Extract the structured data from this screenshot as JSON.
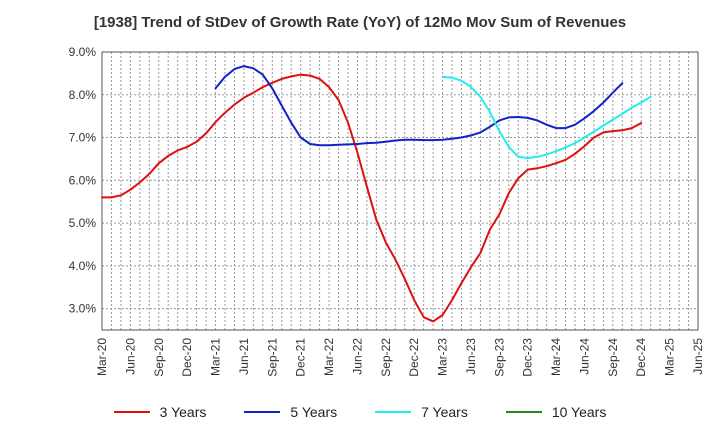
{
  "chart_data": {
    "type": "line",
    "title": "[1938]  Trend of StDev of Growth Rate (YoY) of 12Mo Mov Sum of Revenues",
    "xlabel": "",
    "ylabel": "",
    "ylim": [
      2.5,
      9.0
    ],
    "yticks": [
      3.0,
      4.0,
      5.0,
      6.0,
      7.0,
      8.0,
      9.0
    ],
    "ytick_labels": [
      "3.0%",
      "4.0%",
      "5.0%",
      "6.0%",
      "7.0%",
      "8.0%",
      "9.0%"
    ],
    "x_categories": [
      "Mar-20",
      "Jun-20",
      "Sep-20",
      "Dec-20",
      "Mar-21",
      "Jun-21",
      "Sep-21",
      "Dec-21",
      "Mar-22",
      "Jun-22",
      "Sep-22",
      "Dec-22",
      "Mar-23",
      "Jun-23",
      "Sep-23",
      "Dec-23",
      "Mar-24",
      "Jun-24",
      "Sep-24",
      "Dec-24",
      "Mar-25",
      "Jun-25"
    ],
    "grid": true,
    "legend_position": "bottom",
    "series": [
      {
        "name": "3 Years",
        "color": "#dd1111",
        "start_index": 0,
        "values": [
          5.6,
          5.6,
          5.65,
          5.78,
          5.95,
          6.15,
          6.4,
          6.57,
          6.7,
          6.78,
          6.9,
          7.1,
          7.36,
          7.58,
          7.77,
          7.93,
          8.05,
          8.18,
          8.28,
          8.37,
          8.43,
          8.47,
          8.45,
          8.37,
          8.18,
          7.88,
          7.35,
          6.65,
          5.85,
          5.08,
          4.55,
          4.15,
          3.7,
          3.2,
          2.8,
          2.7,
          2.85,
          3.2,
          3.6,
          3.97,
          4.3,
          4.85,
          5.2,
          5.7,
          6.05,
          6.25,
          6.28,
          6.33,
          6.4,
          6.48,
          6.62,
          6.8,
          7.0,
          7.12,
          7.15,
          7.17,
          7.22,
          7.34
        ]
      },
      {
        "name": "5 Years",
        "color": "#1122cc",
        "start_index": 12,
        "values": [
          8.15,
          8.42,
          8.6,
          8.67,
          8.62,
          8.47,
          8.15,
          7.75,
          7.35,
          7.0,
          6.85,
          6.82,
          6.82,
          6.83,
          6.84,
          6.85,
          6.87,
          6.88,
          6.9,
          6.93,
          6.95,
          6.95,
          6.94,
          6.94,
          6.95,
          6.97,
          7.0,
          7.05,
          7.12,
          7.25,
          7.4,
          7.47,
          7.48,
          7.46,
          7.4,
          7.3,
          7.22,
          7.22,
          7.3,
          7.45,
          7.62,
          7.82,
          8.05,
          8.27
        ]
      },
      {
        "name": "7 Years",
        "color": "#22eeee",
        "start_index": 36,
        "values": [
          8.42,
          8.4,
          8.33,
          8.18,
          7.95,
          7.6,
          7.15,
          6.78,
          6.55,
          6.52,
          6.55,
          6.6,
          6.68,
          6.77,
          6.87,
          7.0,
          7.14,
          7.28,
          7.42,
          7.55,
          7.7,
          7.82,
          7.95
        ]
      },
      {
        "name": "10 Years",
        "color": "#228822",
        "start_index": 0,
        "values": []
      }
    ]
  }
}
